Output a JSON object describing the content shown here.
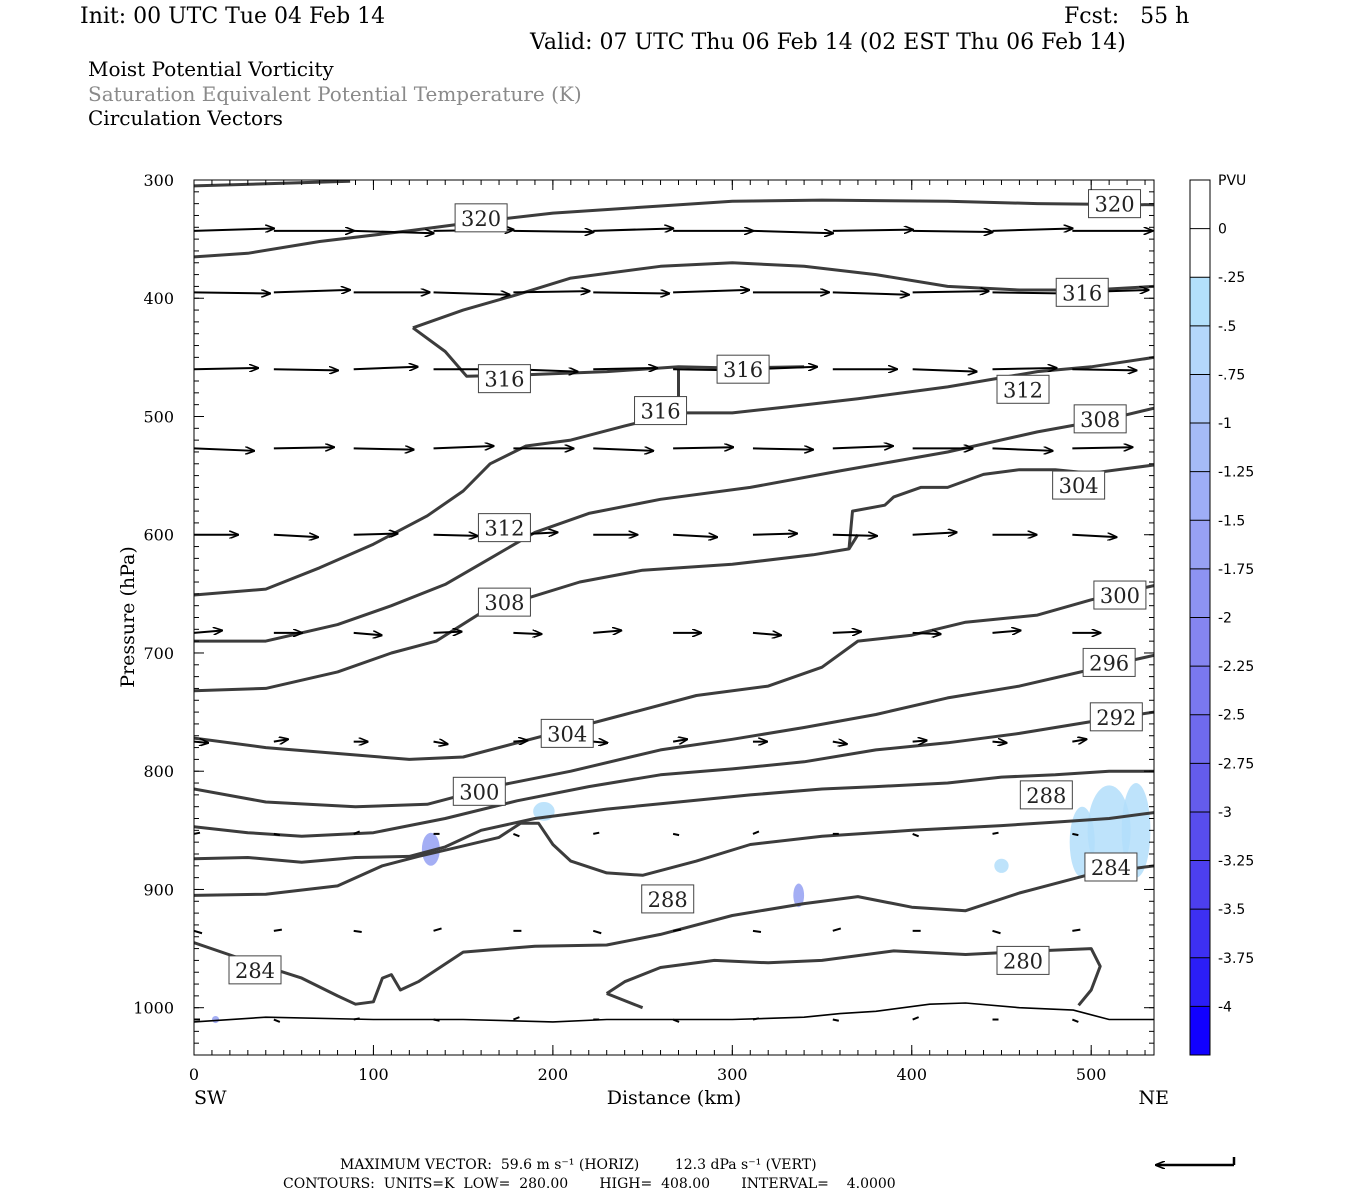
{
  "header": {
    "init": "Init: 00 UTC Tue 04 Feb 14",
    "fcst": "Fcst:   55 h",
    "valid": "Valid: 07 UTC Thu 06 Feb 14 (02 EST Thu 06 Feb 14)",
    "titles": [
      "Moist Potential Vorticity",
      "Saturation Equivalent Potential Temperature (K)",
      "Circulation Vectors"
    ]
  },
  "colors": {
    "contour": "#3c3c3c",
    "vector": "#000000",
    "mpv_light": "#b3defa",
    "mpv_mid": "#7d8cf0",
    "mpv_dark": "#0000ff",
    "terrain": "#000000"
  },
  "chart_data": {
    "type": "cross-section",
    "xlabel": "Distance (km)",
    "ylabel": "Pressure (hPa)",
    "xlim": [
      0,
      535
    ],
    "ylim": [
      1040,
      300
    ],
    "x_ticks": [
      "0",
      "100",
      "200",
      "300",
      "400",
      "500"
    ],
    "y_ticks": [
      "300",
      "400",
      "500",
      "600",
      "700",
      "800",
      "900",
      "1000"
    ],
    "x_left_label": "SW",
    "x_right_label": "NE",
    "colorbar": {
      "title": "PVU",
      "labels": [
        "0",
        "-.25",
        "-.5",
        "-.75",
        "-1",
        "-1.25",
        "-1.5",
        "-1.75",
        "-2",
        "-2.25",
        "-2.5",
        "-2.75",
        "-3",
        "-3.25",
        "-3.5",
        "-3.75",
        "-4"
      ],
      "colors": [
        "#ffffff",
        "#b3e0fb",
        "#b4d7fb",
        "#aec9f9",
        "#a5bbf7",
        "#9eaef6",
        "#97a1f4",
        "#8d93f2",
        "#8585f0",
        "#7a78ef",
        "#6f6aee",
        "#645cec",
        "#584ded",
        "#4c3fef",
        "#3d30f3",
        "#2b1ef7",
        "#1100ff"
      ]
    },
    "contour_labels": [
      {
        "value": "320",
        "x": 160,
        "p": 332
      },
      {
        "value": "320",
        "x": 513,
        "p": 320
      },
      {
        "value": "316",
        "x": 495,
        "p": 395
      },
      {
        "value": "316",
        "x": 173,
        "p": 468
      },
      {
        "value": "316",
        "x": 306,
        "p": 460
      },
      {
        "value": "316",
        "x": 260,
        "p": 495
      },
      {
        "value": "312",
        "x": 462,
        "p": 477
      },
      {
        "value": "308",
        "x": 505,
        "p": 502
      },
      {
        "value": "304",
        "x": 493,
        "p": 558
      },
      {
        "value": "312",
        "x": 173,
        "p": 594
      },
      {
        "value": "308",
        "x": 173,
        "p": 657
      },
      {
        "value": "300",
        "x": 516,
        "p": 651
      },
      {
        "value": "296",
        "x": 510,
        "p": 708
      },
      {
        "value": "292",
        "x": 514,
        "p": 754
      },
      {
        "value": "304",
        "x": 208,
        "p": 768
      },
      {
        "value": "300",
        "x": 159,
        "p": 817
      },
      {
        "value": "288",
        "x": 475,
        "p": 820
      },
      {
        "value": "288",
        "x": 264,
        "p": 908
      },
      {
        "value": "284",
        "x": 511,
        "p": 881
      },
      {
        "value": "280",
        "x": 462,
        "p": 960
      },
      {
        "value": "284",
        "x": 34,
        "p": 968
      }
    ],
    "contours": [
      {
        "value": 320,
        "pts": [
          [
            0,
            305
          ],
          [
            87,
            301
          ]
        ]
      },
      {
        "value": 320,
        "pts": [
          [
            0,
            365
          ],
          [
            30,
            362
          ],
          [
            70,
            352
          ],
          [
            120,
            343
          ],
          [
            160,
            335
          ],
          [
            200,
            328
          ],
          [
            260,
            322
          ],
          [
            300,
            318
          ],
          [
            350,
            317
          ],
          [
            420,
            318
          ],
          [
            470,
            320
          ],
          [
            535,
            321
          ]
        ]
      },
      {
        "value": 316,
        "pts": [
          [
            122,
            425
          ],
          [
            150,
            410
          ],
          [
            180,
            397
          ],
          [
            210,
            383
          ],
          [
            260,
            373
          ],
          [
            300,
            370
          ],
          [
            340,
            373
          ],
          [
            380,
            380
          ],
          [
            420,
            390
          ],
          [
            460,
            393
          ],
          [
            500,
            393
          ],
          [
            535,
            390
          ]
        ]
      },
      {
        "value": 316,
        "pts": [
          [
            122,
            425
          ],
          [
            140,
            445
          ],
          [
            152,
            466
          ],
          [
            180,
            465
          ],
          [
            230,
            462
          ],
          [
            270,
            458
          ],
          [
            300,
            459
          ],
          [
            340,
            458
          ]
        ]
      },
      {
        "value": 316,
        "pts": [
          [
            270,
            460
          ],
          [
            270,
            486
          ]
        ]
      },
      {
        "value": 312,
        "pts": [
          [
            0,
            651
          ],
          [
            40,
            646
          ],
          [
            70,
            628
          ],
          [
            100,
            608
          ],
          [
            130,
            584
          ],
          [
            150,
            563
          ],
          [
            165,
            540
          ],
          [
            185,
            525
          ],
          [
            210,
            520
          ],
          [
            240,
            508
          ],
          [
            270,
            497
          ],
          [
            300,
            497
          ],
          [
            330,
            492
          ],
          [
            370,
            485
          ],
          [
            420,
            475
          ],
          [
            470,
            462
          ],
          [
            500,
            458
          ],
          [
            535,
            450
          ]
        ]
      },
      {
        "value": 308,
        "pts": [
          [
            0,
            690
          ],
          [
            40,
            690
          ],
          [
            80,
            676
          ],
          [
            110,
            660
          ],
          [
            140,
            642
          ],
          [
            165,
            620
          ],
          [
            190,
            598
          ],
          [
            220,
            582
          ],
          [
            260,
            570
          ],
          [
            310,
            560
          ],
          [
            360,
            546
          ],
          [
            420,
            530
          ],
          [
            470,
            513
          ],
          [
            510,
            502
          ],
          [
            535,
            493
          ]
        ]
      },
      {
        "value": 304,
        "pts": [
          [
            0,
            732
          ],
          [
            40,
            730
          ],
          [
            80,
            716
          ],
          [
            110,
            700
          ],
          [
            135,
            690
          ],
          [
            160,
            666
          ],
          [
            185,
            654
          ],
          [
            215,
            640
          ],
          [
            250,
            630
          ],
          [
            300,
            625
          ],
          [
            345,
            617
          ],
          [
            365,
            612
          ],
          [
            367,
            580
          ],
          [
            385,
            575
          ],
          [
            390,
            568
          ],
          [
            405,
            560
          ],
          [
            420,
            560
          ],
          [
            440,
            549
          ],
          [
            460,
            545
          ],
          [
            480,
            545
          ],
          [
            500,
            548
          ],
          [
            535,
            541
          ]
        ]
      },
      {
        "value": 304,
        "pts": [
          [
            365,
            612
          ],
          [
            370,
            600
          ]
        ]
      },
      {
        "value": 300,
        "pts": [
          [
            0,
            772
          ],
          [
            40,
            780
          ],
          [
            80,
            785
          ],
          [
            120,
            790
          ],
          [
            150,
            788
          ],
          [
            200,
            768
          ],
          [
            240,
            752
          ],
          [
            280,
            736
          ],
          [
            320,
            728
          ],
          [
            350,
            712
          ],
          [
            370,
            690
          ],
          [
            400,
            685
          ],
          [
            430,
            674
          ],
          [
            470,
            668
          ],
          [
            500,
            655
          ],
          [
            535,
            643
          ]
        ]
      },
      {
        "value": 296,
        "pts": [
          [
            0,
            815
          ],
          [
            40,
            826
          ],
          [
            90,
            830
          ],
          [
            130,
            828
          ],
          [
            170,
            812
          ],
          [
            210,
            800
          ],
          [
            260,
            782
          ],
          [
            300,
            773
          ],
          [
            340,
            763
          ],
          [
            380,
            752
          ],
          [
            420,
            738
          ],
          [
            460,
            728
          ],
          [
            500,
            714
          ],
          [
            535,
            702
          ]
        ]
      },
      {
        "value": 292,
        "pts": [
          [
            0,
            847
          ],
          [
            30,
            852
          ],
          [
            60,
            855
          ],
          [
            100,
            852
          ],
          [
            140,
            840
          ],
          [
            180,
            825
          ],
          [
            220,
            813
          ],
          [
            260,
            803
          ],
          [
            300,
            798
          ],
          [
            340,
            792
          ],
          [
            380,
            782
          ],
          [
            420,
            776
          ],
          [
            460,
            768
          ],
          [
            500,
            758
          ],
          [
            535,
            750
          ]
        ]
      },
      {
        "value": 288,
        "pts": [
          [
            0,
            874
          ],
          [
            30,
            873
          ],
          [
            60,
            877
          ],
          [
            90,
            873
          ],
          [
            120,
            872
          ],
          [
            140,
            864
          ],
          [
            160,
            850
          ],
          [
            190,
            840
          ],
          [
            230,
            832
          ],
          [
            270,
            826
          ],
          [
            310,
            820
          ],
          [
            350,
            815
          ],
          [
            380,
            813
          ],
          [
            420,
            810
          ],
          [
            450,
            805
          ],
          [
            480,
            803
          ],
          [
            510,
            800
          ],
          [
            535,
            800
          ]
        ]
      },
      {
        "value": 288,
        "pts": [
          [
            0,
            905
          ],
          [
            40,
            904
          ],
          [
            80,
            897
          ],
          [
            105,
            880
          ],
          [
            125,
            872
          ],
          [
            145,
            865
          ],
          [
            170,
            856
          ],
          [
            182,
            844
          ],
          [
            192,
            844
          ],
          [
            200,
            862
          ],
          [
            210,
            876
          ],
          [
            230,
            886
          ],
          [
            250,
            888
          ],
          [
            280,
            876
          ],
          [
            310,
            862
          ],
          [
            350,
            855
          ],
          [
            400,
            850
          ],
          [
            450,
            846
          ],
          [
            480,
            843
          ],
          [
            510,
            840
          ],
          [
            535,
            835
          ]
        ]
      },
      {
        "value": 284,
        "pts": [
          [
            0,
            945
          ],
          [
            25,
            958
          ],
          [
            60,
            975
          ],
          [
            80,
            990
          ],
          [
            90,
            997
          ],
          [
            100,
            995
          ],
          [
            105,
            975
          ],
          [
            110,
            972
          ],
          [
            115,
            985
          ],
          [
            125,
            978
          ],
          [
            150,
            953
          ],
          [
            190,
            948
          ],
          [
            230,
            947
          ],
          [
            260,
            938
          ],
          [
            300,
            922
          ],
          [
            340,
            912
          ],
          [
            370,
            906
          ],
          [
            400,
            915
          ],
          [
            430,
            918
          ],
          [
            460,
            903
          ],
          [
            500,
            887
          ],
          [
            535,
            880
          ]
        ]
      },
      {
        "value": 280,
        "pts": [
          [
            230,
            988
          ],
          [
            240,
            978
          ],
          [
            260,
            966
          ],
          [
            290,
            960
          ],
          [
            320,
            962
          ],
          [
            350,
            960
          ],
          [
            390,
            952
          ],
          [
            430,
            955
          ],
          [
            470,
            952
          ],
          [
            500,
            950
          ],
          [
            505,
            965
          ],
          [
            500,
            985
          ],
          [
            493,
            998
          ]
        ]
      },
      {
        "value": 280,
        "pts": [
          [
            230,
            988
          ],
          [
            250,
            1000
          ]
        ]
      }
    ],
    "terrain": [
      [
        0,
        1012
      ],
      [
        40,
        1008
      ],
      [
        100,
        1010
      ],
      [
        150,
        1010
      ],
      [
        200,
        1012
      ],
      [
        230,
        1010
      ],
      [
        260,
        1010
      ],
      [
        300,
        1010
      ],
      [
        340,
        1008
      ],
      [
        360,
        1005
      ],
      [
        380,
        1003
      ],
      [
        410,
        997
      ],
      [
        430,
        996
      ],
      [
        460,
        1000
      ],
      [
        490,
        1002
      ],
      [
        510,
        1010
      ],
      [
        535,
        1010
      ]
    ],
    "mpv_blobs": [
      {
        "x": 132,
        "p": 866,
        "rx": 5,
        "rp": 14,
        "level": "mid"
      },
      {
        "x": 195,
        "p": 834,
        "rx": 6,
        "rp": 8,
        "level": "light"
      },
      {
        "x": 337,
        "p": 905,
        "rx": 3,
        "rp": 10,
        "level": "mid"
      },
      {
        "x": 495,
        "p": 860,
        "rx": 7,
        "rp": 30,
        "level": "light"
      },
      {
        "x": 510,
        "p": 850,
        "rx": 12,
        "rp": 38,
        "level": "light"
      },
      {
        "x": 525,
        "p": 850,
        "rx": 8,
        "rp": 40,
        "level": "light"
      },
      {
        "x": 450,
        "p": 880,
        "rx": 4,
        "rp": 6,
        "level": "light"
      },
      {
        "x": 12,
        "p": 1010,
        "rx": 2,
        "rp": 3,
        "level": "mid"
      }
    ],
    "vector_rows": [
      {
        "p": 343,
        "u": 40
      },
      {
        "p": 395,
        "u": 38
      },
      {
        "p": 460,
        "u": 32
      },
      {
        "p": 527,
        "u": 30
      },
      {
        "p": 600,
        "u": 22
      },
      {
        "p": 683,
        "u": 14
      },
      {
        "p": 775,
        "u": 7
      },
      {
        "p": 853,
        "u": 3
      },
      {
        "p": 935,
        "u": 4
      },
      {
        "p": 1010,
        "u": 3
      }
    ],
    "vector_spacing_km": 44.5
  },
  "footer": {
    "maxvec": "MAXIMUM VECTOR:  59.6 m s⁻¹ (HORIZ)        12.3 dPa s⁻¹ (VERT)",
    "contours": "CONTOURS:  UNITS=K  LOW=  280.00       HIGH=  408.00       INTERVAL=    4.0000"
  }
}
